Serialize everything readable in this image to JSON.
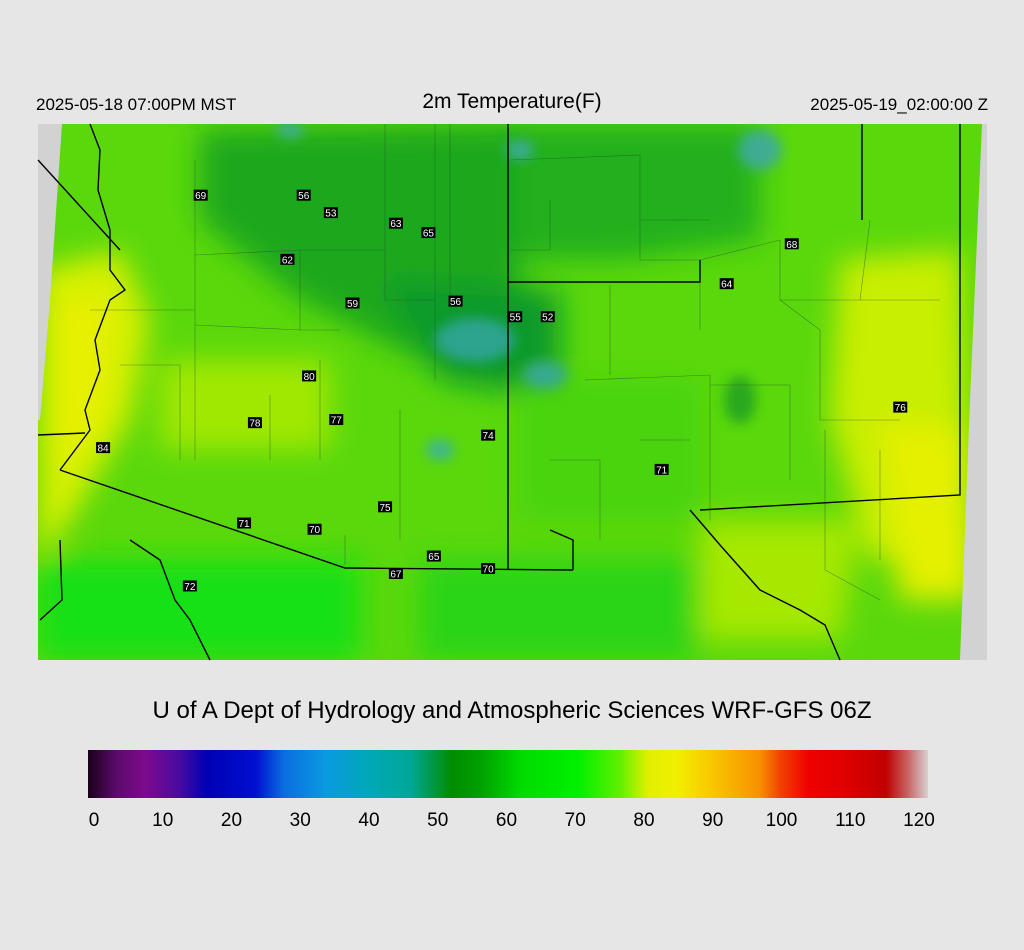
{
  "header": {
    "local_time": "2025-05-18 07:00PM MST",
    "title": "2m Temperature(F)",
    "valid_time": "2025-05-19_02:00:00 Z"
  },
  "map": {
    "stations": [
      {
        "value": "69",
        "lon": -113.0,
        "lat": 38.25
      },
      {
        "value": "56",
        "lon": -111.1,
        "lat": 38.25
      },
      {
        "value": "53",
        "lon": -110.6,
        "lat": 37.97
      },
      {
        "value": "63",
        "lon": -109.4,
        "lat": 37.8
      },
      {
        "value": "65",
        "lon": -108.8,
        "lat": 37.65
      },
      {
        "value": "62",
        "lon": -111.4,
        "lat": 37.22
      },
      {
        "value": "68",
        "lon": -102.1,
        "lat": 37.47
      },
      {
        "value": "64",
        "lon": -103.3,
        "lat": 36.83
      },
      {
        "value": "59",
        "lon": -110.2,
        "lat": 36.52
      },
      {
        "value": "56",
        "lon": -108.3,
        "lat": 36.55
      },
      {
        "value": "55",
        "lon": -107.2,
        "lat": 36.3
      },
      {
        "value": "52",
        "lon": -106.6,
        "lat": 36.3
      },
      {
        "value": "80",
        "lon": -111.0,
        "lat": 35.35
      },
      {
        "value": "78",
        "lon": -112.0,
        "lat": 34.6
      },
      {
        "value": "77",
        "lon": -110.5,
        "lat": 34.65
      },
      {
        "value": "74",
        "lon": -107.7,
        "lat": 34.4
      },
      {
        "value": "84",
        "lon": -114.8,
        "lat": 34.2
      },
      {
        "value": "76",
        "lon": -100.1,
        "lat": 34.85
      },
      {
        "value": "71",
        "lon": -104.5,
        "lat": 33.85
      },
      {
        "value": "75",
        "lon": -109.6,
        "lat": 33.25
      },
      {
        "value": "71",
        "lon": -112.2,
        "lat": 32.99
      },
      {
        "value": "70",
        "lon": -110.9,
        "lat": 32.89
      },
      {
        "value": "65",
        "lon": -108.7,
        "lat": 32.46
      },
      {
        "value": "70",
        "lon": -107.7,
        "lat": 32.26
      },
      {
        "value": "67",
        "lon": -109.4,
        "lat": 32.18
      },
      {
        "value": "72",
        "lon": -113.2,
        "lat": 31.98
      }
    ]
  },
  "footer": {
    "credit": "U of A Dept of Hydrology and Atmospheric Sciences WRF-GFS 06Z"
  },
  "colorbar": {
    "min": 0,
    "max": 120,
    "ticks": [
      "0",
      "10",
      "20",
      "30",
      "40",
      "50",
      "60",
      "70",
      "80",
      "90",
      "100",
      "110",
      "120"
    ],
    "stops": [
      {
        "v": 0,
        "c": "#1a001a"
      },
      {
        "v": 4,
        "c": "#5a0a6a"
      },
      {
        "v": 8,
        "c": "#7d0a8c"
      },
      {
        "v": 13,
        "c": "#4a0aa0"
      },
      {
        "v": 17,
        "c": "#0000b4"
      },
      {
        "v": 24,
        "c": "#0010d0"
      },
      {
        "v": 28,
        "c": "#0a6ee0"
      },
      {
        "v": 34,
        "c": "#0a9ae0"
      },
      {
        "v": 40,
        "c": "#00a8b8"
      },
      {
        "v": 46,
        "c": "#00a898"
      },
      {
        "v": 52,
        "c": "#008c00"
      },
      {
        "v": 56,
        "c": "#00a000"
      },
      {
        "v": 62,
        "c": "#00dc00"
      },
      {
        "v": 70,
        "c": "#00f000"
      },
      {
        "v": 76,
        "c": "#60f000"
      },
      {
        "v": 80,
        "c": "#e0f000"
      },
      {
        "v": 84,
        "c": "#f0f000"
      },
      {
        "v": 88,
        "c": "#f8d000"
      },
      {
        "v": 92,
        "c": "#f8b000"
      },
      {
        "v": 96,
        "c": "#f89000"
      },
      {
        "v": 99,
        "c": "#f04000"
      },
      {
        "v": 103,
        "c": "#f00000"
      },
      {
        "v": 108,
        "c": "#e00000"
      },
      {
        "v": 114,
        "c": "#c00000"
      },
      {
        "v": 117,
        "c": "#c86060"
      },
      {
        "v": 120,
        "c": "#d8d0d0"
      }
    ]
  }
}
